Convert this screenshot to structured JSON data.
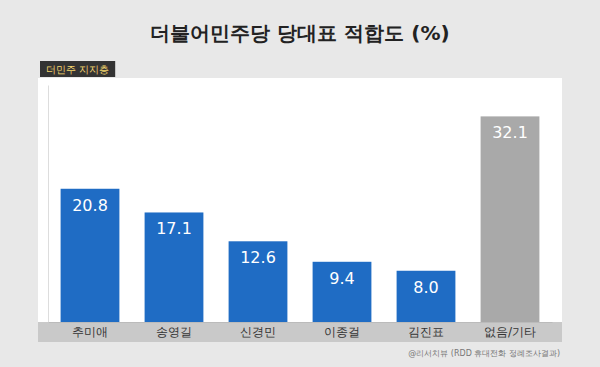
{
  "chart_data": {
    "type": "bar",
    "title": "더불어민주당 당대표 적합도 (%)",
    "subtitle": "더민주 지지층",
    "categories": [
      "추미애",
      "송영길",
      "신경민",
      "이종걸",
      "김진표",
      "없음/기타"
    ],
    "values": [
      20.8,
      17.1,
      12.6,
      9.4,
      8.0,
      32.1
    ],
    "value_labels": [
      "20.8",
      "17.1",
      "12.6",
      "9.4",
      "8.0",
      "32.1"
    ],
    "colors": [
      "#1f6cc4",
      "#1f6cc4",
      "#1f6cc4",
      "#1f6cc4",
      "#1f6cc4",
      "#a9a9a9"
    ],
    "ylim": [
      0,
      37
    ],
    "data_labels": true,
    "tick_labels": "x",
    "annotations": [
      "@리서치뷰 (RDD 휴대전화 정례조사결과)"
    ]
  }
}
